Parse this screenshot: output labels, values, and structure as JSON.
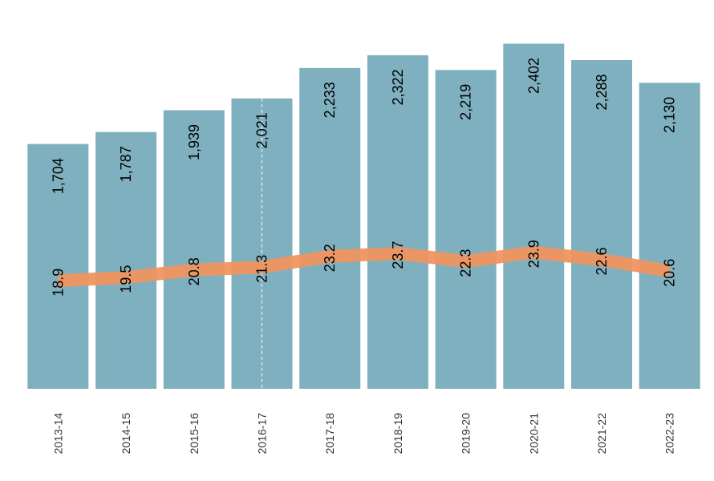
{
  "chart_data": {
    "type": "bar",
    "categories": [
      "2013-14",
      "2014-15",
      "2015-16",
      "2016-17",
      "2017-18",
      "2018-19",
      "2019-20",
      "2020-21",
      "2021-22",
      "2022-23"
    ],
    "series": [
      {
        "type": "bar",
        "values": [
          1704,
          1787,
          1939,
          2021,
          2233,
          2322,
          2219,
          2402,
          2288,
          2130
        ],
        "labels": [
          "1,704",
          "1,787",
          "1,939",
          "2,021",
          "2,233",
          "2,322",
          "2,219",
          "2,402",
          "2,288",
          "2,130"
        ],
        "color": "#7fb0bf"
      },
      {
        "type": "line",
        "values": [
          18.9,
          19.5,
          20.8,
          21.3,
          23.2,
          23.7,
          22.3,
          23.9,
          22.6,
          20.6
        ],
        "labels": [
          "18.9",
          "19.5",
          "20.8",
          "21.3",
          "23.2",
          "23.7",
          "22.3",
          "23.9",
          "22.6",
          "20.6"
        ],
        "color": "#f0945f"
      }
    ],
    "bar_ylim": [
      0,
      2550
    ],
    "line_ylim": [
      0,
      40
    ],
    "xlabel": "",
    "ylabel": "",
    "grid": false,
    "legend": "none",
    "annotations": [
      {
        "type": "vertical-dashed-line",
        "category": "2016-17",
        "color": "#ffffff"
      }
    ]
  }
}
